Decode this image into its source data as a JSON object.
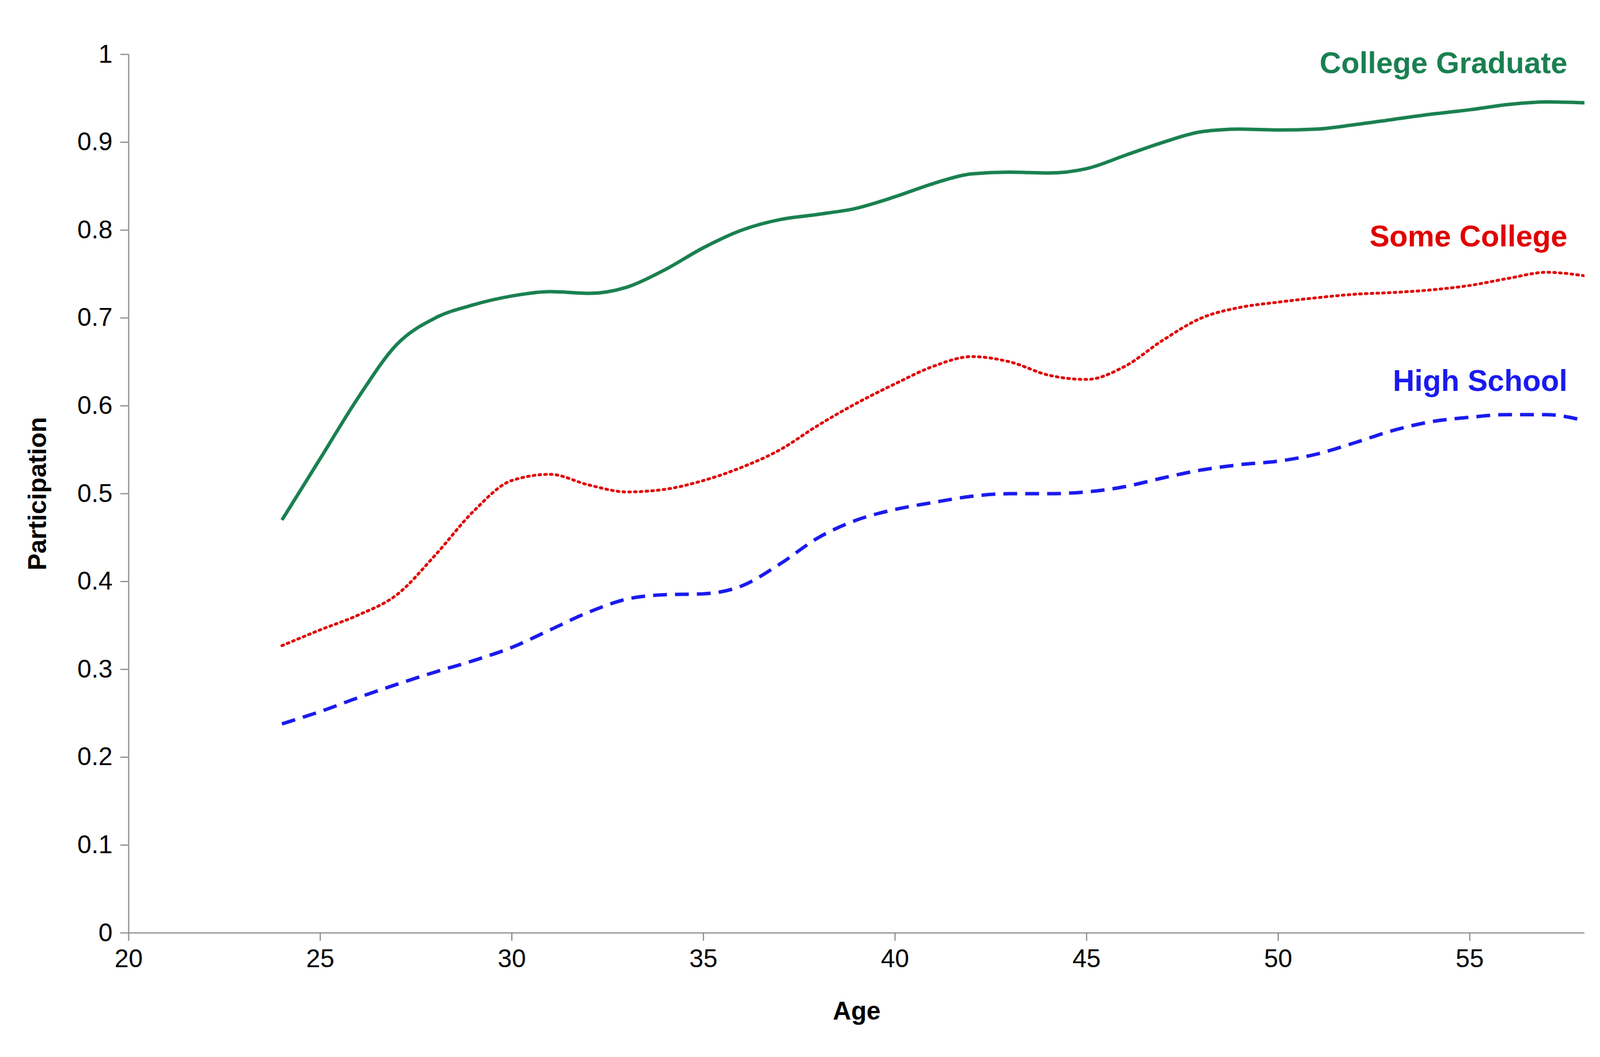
{
  "chart_data": {
    "type": "line",
    "xlabel": "Age",
    "ylabel": "Participation",
    "x": [
      24,
      25,
      26,
      27,
      28,
      29,
      30,
      31,
      32,
      33,
      34,
      35,
      36,
      37,
      38,
      39,
      40,
      41,
      42,
      43,
      44,
      45,
      46,
      47,
      48,
      49,
      50,
      51,
      52,
      53,
      54,
      55,
      56,
      57,
      58
    ],
    "series": [
      {
        "name": "College Graduate",
        "color": "#1a8050",
        "line_style": "solid",
        "values": [
          0.47,
          0.54,
          0.61,
          0.67,
          0.7,
          0.715,
          0.725,
          0.73,
          0.728,
          0.735,
          0.755,
          0.78,
          0.8,
          0.812,
          0.818,
          0.825,
          0.838,
          0.853,
          0.864,
          0.866,
          0.865,
          0.87,
          0.885,
          0.9,
          0.912,
          0.915,
          0.914,
          0.915,
          0.92,
          0.926,
          0.932,
          0.937,
          0.943,
          0.946,
          0.945
        ]
      },
      {
        "name": "Some College",
        "color": "#e00000",
        "line_style": "dotted",
        "values": [
          0.327,
          0.345,
          0.362,
          0.385,
          0.43,
          0.48,
          0.515,
          0.522,
          0.51,
          0.502,
          0.505,
          0.515,
          0.53,
          0.55,
          0.578,
          0.603,
          0.625,
          0.645,
          0.656,
          0.65,
          0.635,
          0.63,
          0.645,
          0.675,
          0.7,
          0.712,
          0.718,
          0.723,
          0.727,
          0.729,
          0.732,
          0.737,
          0.745,
          0.752,
          0.748
        ]
      },
      {
        "name": "High School",
        "color": "#1a1aee",
        "line_style": "dashed",
        "values": [
          0.238,
          0.252,
          0.268,
          0.283,
          0.297,
          0.31,
          0.325,
          0.345,
          0.365,
          0.38,
          0.385,
          0.386,
          0.395,
          0.42,
          0.45,
          0.47,
          0.482,
          0.49,
          0.497,
          0.5,
          0.5,
          0.502,
          0.508,
          0.518,
          0.527,
          0.533,
          0.537,
          0.545,
          0.558,
          0.572,
          0.582,
          0.587,
          0.59,
          0.59,
          0.583
        ]
      }
    ],
    "xlim": [
      20,
      58
    ],
    "xticks": [
      20,
      25,
      30,
      35,
      40,
      45,
      50,
      55
    ],
    "ylim": [
      0,
      1
    ],
    "yticks": [
      0,
      0.1,
      0.2,
      0.3,
      0.4,
      0.5,
      0.6,
      0.7,
      0.8,
      0.9,
      1
    ],
    "grid": false
  }
}
